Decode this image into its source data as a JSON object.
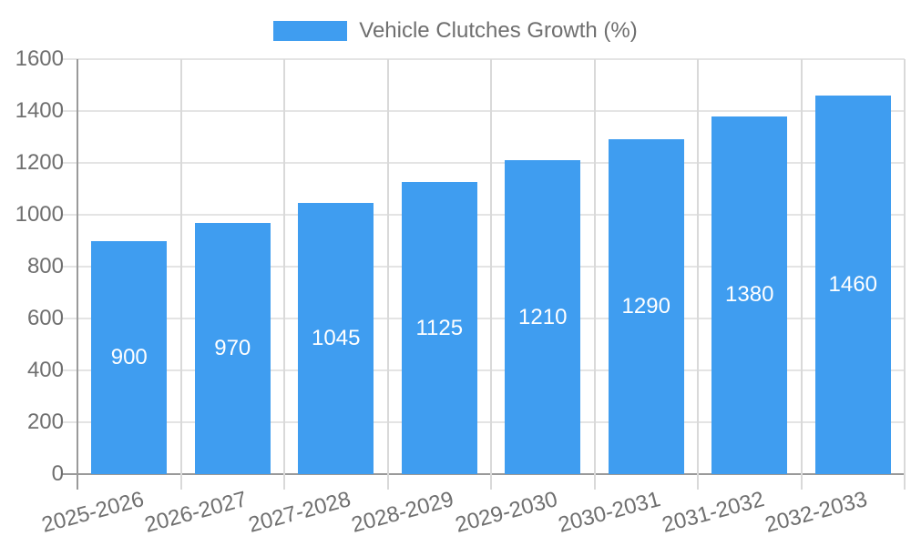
{
  "chart_data": {
    "type": "bar",
    "title": "Vehicle Clutches Growth (%)",
    "legend_position": "top",
    "categories": [
      "2025-2026",
      "2026-2027",
      "2027-2028",
      "2028-2029",
      "2029-2030",
      "2030-2031",
      "2031-2032",
      "2032-2033"
    ],
    "series": [
      {
        "name": "Vehicle Clutches Growth (%)",
        "values": [
          900,
          970,
          1045,
          1125,
          1210,
          1290,
          1380,
          1460
        ]
      }
    ],
    "xlabel": "",
    "ylabel": "",
    "ylim": [
      0,
      1600
    ],
    "yticks": [
      0,
      200,
      400,
      600,
      800,
      1000,
      1200,
      1400,
      1600
    ],
    "grid": true,
    "colors": {
      "bar": "#3f9df0",
      "bar_value_text": "#ffffff",
      "axis_text": "#6f6f6f",
      "axis_line": "#9a9a9a",
      "hgrid_line": "#e4e4e4",
      "vgrid_line": "#d9d9d9"
    }
  }
}
